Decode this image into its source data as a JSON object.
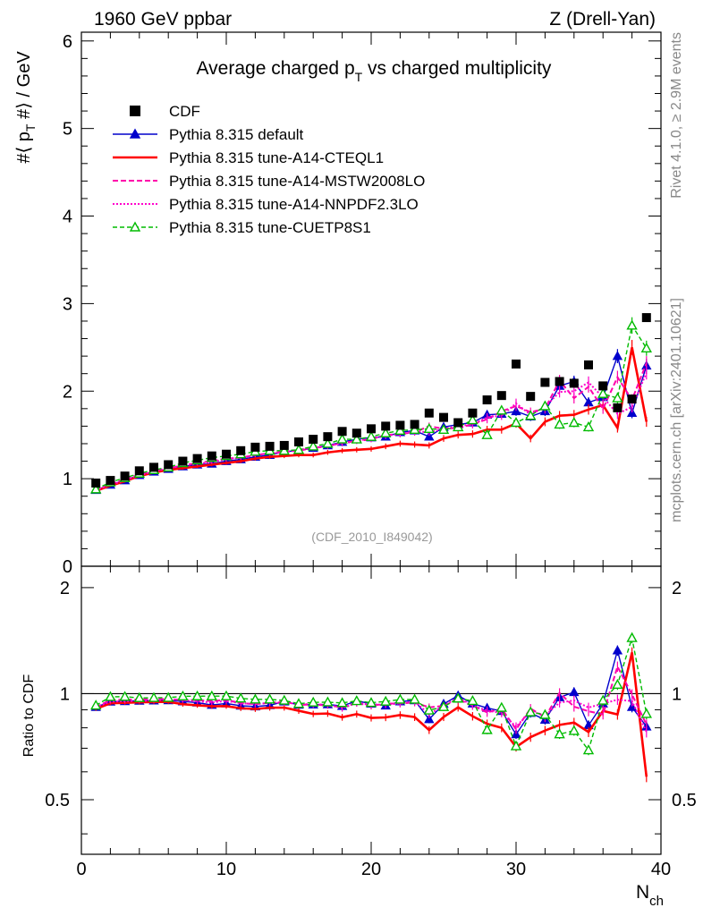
{
  "chart_data": {
    "type": "scatter",
    "top_left_label": "1960 GeV ppbar",
    "top_right_label": "Z (Drell-Yan)",
    "title": "Average charged p_T vs charged multiplicity",
    "title_parts": {
      "main": "Average charged p",
      "sub": "T",
      "rest": " vs charged multiplicity"
    },
    "ylabel": "#⟨ p_T #⟩ / GeV",
    "ylabel_parts": {
      "pre": "#⟨ p",
      "sub": "T",
      "post": " #⟩ / GeV"
    },
    "ratio_ylabel": "Ratio to CDF",
    "xlabel": "N_ch",
    "xlabel_parts": {
      "main": "N",
      "sub": "ch"
    },
    "analysis_tag": "(CDF_2010_I849042)",
    "side_label_top": "Rivet 4.1.0, ≥ 2.9M events",
    "side_label_bottom": "mcplots.cern.ch [arXiv:2401.10621]",
    "xlim": [
      0,
      40
    ],
    "ylim_main": [
      0,
      6.1
    ],
    "ylim_ratio": [
      0.35,
      2.3
    ],
    "x_ticks": [
      0,
      10,
      20,
      30,
      40
    ],
    "y_ticks_main": [
      0,
      1,
      2,
      3,
      4,
      5,
      6
    ],
    "y_ticks_ratio": [
      0.5,
      1,
      2
    ],
    "x": [
      1,
      2,
      3,
      4,
      5,
      6,
      7,
      8,
      9,
      10,
      11,
      12,
      13,
      14,
      15,
      16,
      17,
      18,
      19,
      20,
      21,
      22,
      23,
      24,
      25,
      26,
      27,
      28,
      29,
      30,
      31,
      32,
      33,
      34,
      35,
      36,
      37,
      38,
      39
    ],
    "data": {
      "name": "CDF",
      "values": [
        0.95,
        0.98,
        1.03,
        1.09,
        1.13,
        1.16,
        1.2,
        1.23,
        1.26,
        1.28,
        1.32,
        1.36,
        1.37,
        1.38,
        1.42,
        1.45,
        1.48,
        1.54,
        1.52,
        1.57,
        1.6,
        1.61,
        1.62,
        1.75,
        1.7,
        1.64,
        1.75,
        1.9,
        1.95,
        2.31,
        1.94,
        2.1,
        2.11,
        2.09,
        2.3,
        2.06,
        1.81,
        1.91,
        2.84
      ]
    },
    "series": [
      {
        "name": "Pythia 8.315 default",
        "color": "#0000cc",
        "style": "solid-triangle",
        "values": [
          0.87,
          0.93,
          0.98,
          1.04,
          1.08,
          1.11,
          1.14,
          1.16,
          1.17,
          1.2,
          1.22,
          1.25,
          1.27,
          1.31,
          1.32,
          1.35,
          1.38,
          1.42,
          1.45,
          1.47,
          1.48,
          1.53,
          1.55,
          1.48,
          1.59,
          1.62,
          1.64,
          1.73,
          1.74,
          1.77,
          1.71,
          1.77,
          2.06,
          2.11,
          1.87,
          1.93,
          2.4,
          1.75,
          2.29
        ]
      },
      {
        "name": "Pythia 8.315 tune-A14-CTEQL1",
        "color": "#ff0000",
        "style": "thick-solid",
        "values": [
          0.86,
          0.92,
          0.97,
          1.03,
          1.07,
          1.1,
          1.12,
          1.14,
          1.16,
          1.18,
          1.2,
          1.23,
          1.25,
          1.26,
          1.27,
          1.27,
          1.3,
          1.32,
          1.33,
          1.34,
          1.37,
          1.4,
          1.39,
          1.38,
          1.46,
          1.5,
          1.51,
          1.56,
          1.56,
          1.63,
          1.46,
          1.65,
          1.72,
          1.73,
          1.79,
          1.84,
          1.58,
          2.5,
          1.65
        ]
      },
      {
        "name": "Pythia 8.315 tune-A14-MSTW2008LO",
        "color": "#ff00aa",
        "style": "dashed",
        "values": [
          0.87,
          0.94,
          0.99,
          1.05,
          1.09,
          1.12,
          1.15,
          1.18,
          1.2,
          1.23,
          1.24,
          1.27,
          1.29,
          1.31,
          1.32,
          1.35,
          1.37,
          1.41,
          1.43,
          1.45,
          1.5,
          1.51,
          1.53,
          1.6,
          1.57,
          1.58,
          1.62,
          1.68,
          1.77,
          1.83,
          1.76,
          1.8,
          2.12,
          1.92,
          2.05,
          1.8,
          2.16,
          1.9,
          2.32
        ]
      },
      {
        "name": "Pythia 8.315 tune-A14-NNPDF2.3LO",
        "color": "#ff00cc",
        "style": "dotted",
        "values": [
          0.87,
          0.93,
          0.98,
          1.04,
          1.08,
          1.12,
          1.15,
          1.17,
          1.19,
          1.22,
          1.24,
          1.27,
          1.29,
          1.3,
          1.33,
          1.35,
          1.38,
          1.4,
          1.43,
          1.46,
          1.49,
          1.51,
          1.54,
          1.53,
          1.57,
          1.6,
          1.62,
          1.7,
          1.72,
          1.86,
          1.73,
          1.82,
          1.99,
          2.0,
          2.1,
          1.93,
          1.74,
          1.82,
          2.21
        ]
      },
      {
        "name": "Pythia 8.315 tune-CUETP8S1",
        "color": "#00bb00",
        "style": "dashed-open-triangle",
        "values": [
          0.88,
          0.96,
          1.01,
          1.06,
          1.1,
          1.13,
          1.18,
          1.21,
          1.24,
          1.26,
          1.28,
          1.31,
          1.32,
          1.32,
          1.33,
          1.37,
          1.4,
          1.45,
          1.45,
          1.48,
          1.52,
          1.55,
          1.56,
          1.57,
          1.56,
          1.59,
          1.67,
          1.5,
          1.78,
          1.64,
          1.72,
          1.83,
          1.62,
          1.64,
          1.59,
          1.97,
          1.92,
          2.75,
          2.49
        ]
      }
    ],
    "legend_position": "top-left"
  }
}
